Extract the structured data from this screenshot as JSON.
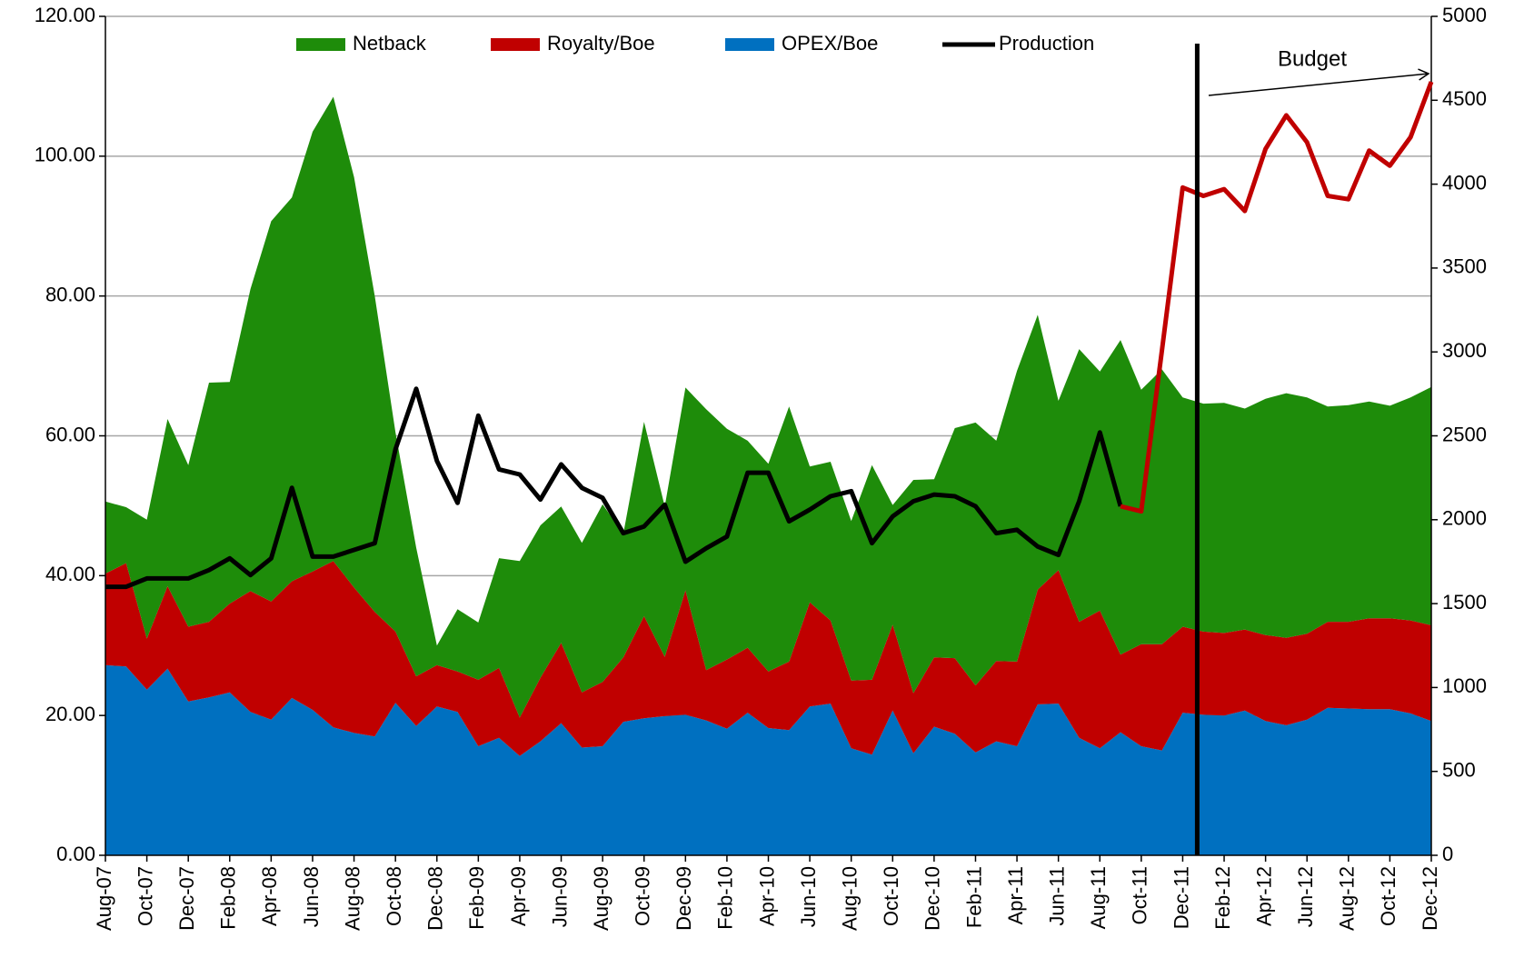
{
  "chart_data": {
    "type": "area",
    "categories": [
      "Aug-07",
      null,
      "Oct-07",
      null,
      "Dec-07",
      null,
      "Feb-08",
      null,
      "Apr-08",
      null,
      "Jun-08",
      null,
      "Aug-08",
      null,
      "Oct-08",
      null,
      "Dec-08",
      null,
      "Feb-09",
      null,
      "Apr-09",
      null,
      "Jun-09",
      null,
      "Aug-09",
      null,
      "Oct-09",
      null,
      "Dec-09",
      null,
      "Feb-10",
      null,
      "Apr-10",
      null,
      "Jun-10",
      null,
      "Aug-10",
      null,
      "Oct-10",
      null,
      "Dec-10",
      null,
      "Feb-11",
      null,
      "Apr-11",
      null,
      "Jun-11",
      null,
      "Aug-11",
      null,
      "Oct-11",
      null,
      "Dec-11",
      null,
      "Feb-12",
      null,
      "Apr-12",
      null,
      "Jun-12",
      null,
      "Aug-12",
      null,
      "Oct-12",
      null,
      "Dec-12"
    ],
    "series": [
      {
        "name": "OPEX/Boe",
        "type": "area",
        "color": "#0070c0",
        "values": [
          27.2,
          27.0,
          23.7,
          26.7,
          22.0,
          22.6,
          23.3,
          20.5,
          19.4,
          22.5,
          20.8,
          18.3,
          17.5,
          17.0,
          21.8,
          18.5,
          21.3,
          20.5,
          15.6,
          16.8,
          14.2,
          16.3,
          18.9,
          15.4,
          15.6,
          19.1,
          19.6,
          19.9,
          20.1,
          19.3,
          18.1,
          20.4,
          18.2,
          17.9,
          21.3,
          21.7,
          15.3,
          14.4,
          20.7,
          14.6,
          18.4,
          17.4,
          14.7,
          16.3,
          15.6,
          21.6,
          21.7,
          16.8,
          15.3,
          17.6,
          15.6,
          15.0,
          20.4,
          20.1,
          20.0,
          20.7,
          19.2,
          18.6,
          19.4,
          21.1,
          21.0,
          20.9,
          20.9,
          20.3,
          19.2
        ]
      },
      {
        "name": "Royalty/Boe",
        "type": "area",
        "color": "#c00000",
        "values": [
          13.1,
          14.8,
          7.3,
          11.8,
          10.7,
          10.8,
          12.7,
          17.3,
          16.9,
          16.7,
          19.8,
          23.8,
          20.8,
          17.8,
          10.2,
          7.1,
          5.9,
          5.8,
          9.5,
          10.0,
          5.5,
          9.1,
          11.5,
          7.9,
          9.2,
          9.2,
          14.6,
          8.5,
          17.8,
          7.2,
          9.9,
          9.3,
          8.1,
          9.8,
          14.9,
          11.9,
          9.7,
          10.7,
          12.3,
          8.6,
          9.9,
          10.8,
          9.6,
          11.5,
          12.1,
          16.4,
          19.1,
          16.6,
          19.7,
          11.1,
          14.6,
          15.2,
          12.3,
          11.9,
          11.8,
          11.6,
          12.3,
          12.5,
          12.3,
          12.3,
          12.4,
          13.0,
          13.0,
          13.3,
          13.7
        ]
      },
      {
        "name": "Netback",
        "type": "area",
        "color": "#1e8c0a",
        "values": [
          10.3,
          8.0,
          17.0,
          23.9,
          23.1,
          34.2,
          31.7,
          43.2,
          54.4,
          54.9,
          62.9,
          66.4,
          58.7,
          45.2,
          28.5,
          18.4,
          2.8,
          8.9,
          8.2,
          15.7,
          22.4,
          21.8,
          19.5,
          21.4,
          25.4,
          17.7,
          27.8,
          21.5,
          29.0,
          37.3,
          33.0,
          29.6,
          29.7,
          36.5,
          19.4,
          22.7,
          22.8,
          30.7,
          17.1,
          30.5,
          25.5,
          32.9,
          37.6,
          31.5,
          41.6,
          39.3,
          24.2,
          39.0,
          34.2,
          45.0,
          36.4,
          39.3,
          32.8,
          32.6,
          32.9,
          31.6,
          33.8,
          35.0,
          33.8,
          30.8,
          31.0,
          31.0,
          30.4,
          31.9,
          34.1
        ]
      },
      {
        "name": "Production",
        "type": "line",
        "axis": "y2",
        "color": "#000000",
        "values": [
          1600,
          1600,
          1650,
          1650,
          1650,
          1700,
          1770,
          1670,
          1770,
          2190,
          1780,
          1780,
          1820,
          1860,
          2420,
          2780,
          2350,
          2100,
          2620,
          2300,
          2270,
          2120,
          2330,
          2190,
          2130,
          1920,
          1960,
          2090,
          1750,
          1830,
          1900,
          2280,
          2280,
          1990,
          2060,
          2140,
          2170,
          1860,
          2020,
          2110,
          2150,
          2140,
          2080,
          1920,
          1940,
          1840,
          1790,
          2110,
          2520,
          2080,
          null,
          null,
          null,
          null,
          null,
          null,
          null,
          null,
          null,
          null,
          null,
          null,
          null,
          null,
          null
        ]
      }
    ],
    "budget_line": {
      "type": "line",
      "axis": "y2",
      "color": "#c00000",
      "values": [
        null,
        null,
        null,
        null,
        null,
        null,
        null,
        null,
        null,
        null,
        null,
        null,
        null,
        null,
        null,
        null,
        null,
        null,
        null,
        null,
        null,
        null,
        null,
        null,
        null,
        null,
        null,
        null,
        null,
        null,
        null,
        null,
        null,
        null,
        null,
        null,
        null,
        null,
        null,
        null,
        null,
        null,
        null,
        null,
        null,
        null,
        null,
        null,
        null,
        2080,
        2050,
        3010,
        3980,
        3930,
        3970,
        3840,
        4210,
        4410,
        4250,
        3930,
        3910,
        4200,
        4110,
        4280,
        4610
      ]
    },
    "annotations": [
      {
        "text": "Budget"
      }
    ],
    "ylim": [
      0,
      120
    ],
    "yticks": [
      {
        "value": 0,
        "label": "0.00"
      },
      {
        "value": 20,
        "label": "20.00"
      },
      {
        "value": 40,
        "label": "40.00"
      },
      {
        "value": 60,
        "label": "60.00"
      },
      {
        "value": 80,
        "label": "80.00"
      },
      {
        "value": 100,
        "label": "100.00"
      },
      {
        "value": 120,
        "label": "120.00"
      }
    ],
    "y2lim": [
      0,
      5000
    ],
    "y2ticks": [
      0,
      500,
      1000,
      1500,
      2000,
      2500,
      3000,
      3500,
      4000,
      4500,
      5000
    ],
    "grid": true,
    "legend": "top"
  }
}
